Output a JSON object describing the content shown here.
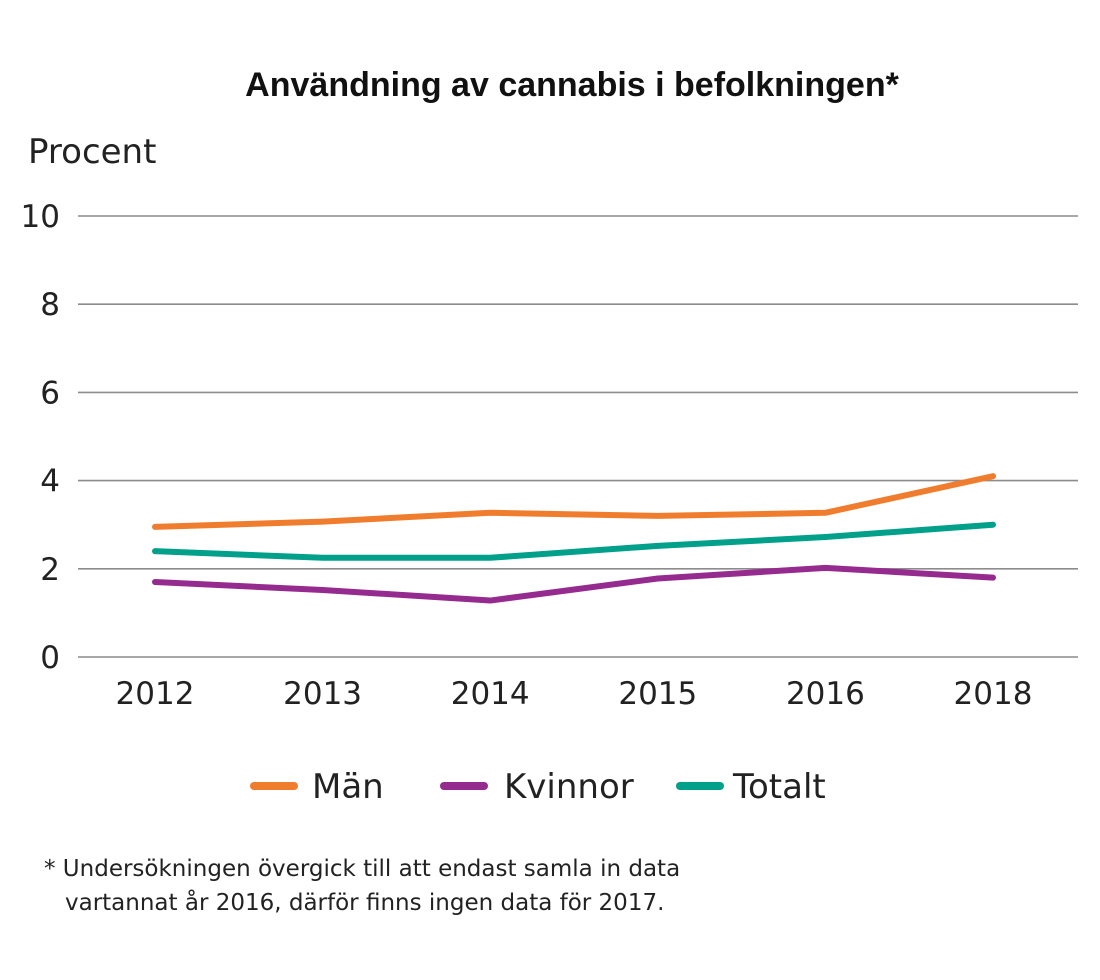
{
  "chart_data": {
    "type": "line",
    "title": "Användning av cannabis i befolkningen*",
    "ylabel": "Procent",
    "xlabel": "",
    "x": [
      "2012",
      "2013",
      "2014",
      "2015",
      "2016",
      "2018"
    ],
    "ylim": [
      0,
      10
    ],
    "yticks": [
      "0",
      "2",
      "4",
      "6",
      "8",
      "10"
    ],
    "grid": true,
    "legend_position": "bottom",
    "series": [
      {
        "name": "Män",
        "color": "#f07d2e",
        "values": [
          2.95,
          3.07,
          3.27,
          3.2,
          3.27,
          4.1
        ]
      },
      {
        "name": "Kvinnor",
        "color": "#952b8f",
        "values": [
          1.7,
          1.52,
          1.28,
          1.78,
          2.02,
          1.8
        ]
      },
      {
        "name": "Totalt",
        "color": "#00a08a",
        "values": [
          2.4,
          2.25,
          2.25,
          2.52,
          2.72,
          3.0
        ]
      }
    ]
  },
  "footnote": {
    "line1": "* Undersökningen övergick till att endast samla in data",
    "line2": "vartannat år 2016, därför finns ingen data för 2017."
  }
}
